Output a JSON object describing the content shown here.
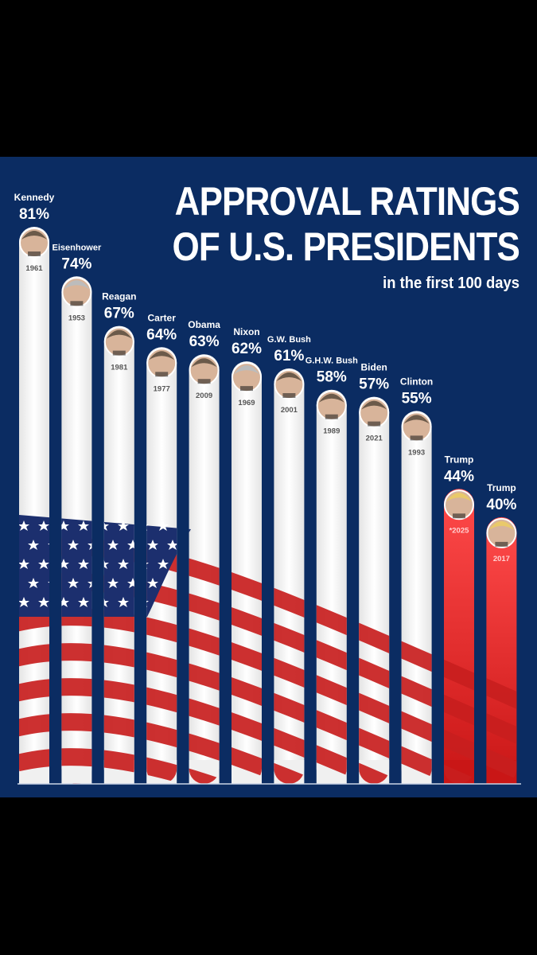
{
  "colors": {
    "background": "#000000",
    "panel": "#0b2c62",
    "bar_white": "#f2f2f2",
    "bar_red": "#e02020",
    "flag_red": "#c81e1e",
    "flag_blue": "#1c2f6e",
    "text": "#ffffff",
    "year_text": "#555555"
  },
  "title": {
    "line1": "APPROVAL RATINGS",
    "line2": "OF U.S. PRESIDENTS",
    "subtitle": "in the first 100 days"
  },
  "chart_data": {
    "type": "bar",
    "title": "APPROVAL RATINGS OF U.S. PRESIDENTS",
    "subtitle": "in the first 100 days",
    "ylabel": "",
    "xlabel": "",
    "ylim": [
      0,
      100
    ],
    "series": [
      {
        "name": "Kennedy",
        "label": "81%",
        "value": 81,
        "year": "1961",
        "highlight": false
      },
      {
        "name": "Eisenhower",
        "label": "74%",
        "value": 74,
        "year": "1953",
        "highlight": false
      },
      {
        "name": "Reagan",
        "label": "67%",
        "value": 67,
        "year": "1981",
        "highlight": false
      },
      {
        "name": "Carter",
        "label": "64%",
        "value": 64,
        "year": "1977",
        "highlight": false
      },
      {
        "name": "Obama",
        "label": "63%",
        "value": 63,
        "year": "2009",
        "highlight": false
      },
      {
        "name": "Nixon",
        "label": "62%",
        "value": 62,
        "year": "1969",
        "highlight": false
      },
      {
        "name": "G.W. Bush",
        "label": "61%",
        "value": 61,
        "year": "2001",
        "highlight": false
      },
      {
        "name": "G.H.W. Bush",
        "label": "58%",
        "value": 58,
        "year": "1989",
        "highlight": false
      },
      {
        "name": "Biden",
        "label": "57%",
        "value": 57,
        "year": "2021",
        "highlight": false
      },
      {
        "name": "Clinton",
        "label": "55%",
        "value": 55,
        "year": "1993",
        "highlight": false
      },
      {
        "name": "Trump",
        "label": "44%",
        "value": 44,
        "year": "*2025",
        "highlight": true
      },
      {
        "name": "Trump",
        "label": "40%",
        "value": 40,
        "year": "2017",
        "highlight": true
      }
    ]
  }
}
